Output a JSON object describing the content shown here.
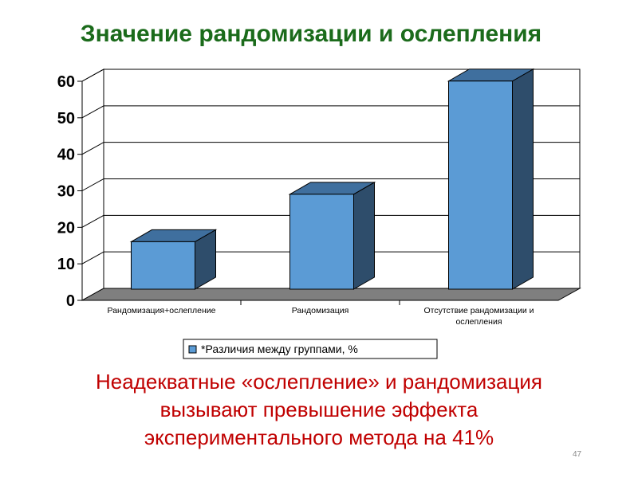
{
  "slide": {
    "title": "Значение рандомизации и ослепления",
    "caption_lines": [
      "Неадекватные «ослепление» и рандомизация",
      "вызывают превышение эффекта",
      "экспериментального метода на 41%"
    ],
    "page_number": "47"
  },
  "chart_data": {
    "type": "bar",
    "title": "",
    "xlabel": "",
    "ylabel": "",
    "categories": [
      [
        "Рандомизация+ослепление"
      ],
      [
        "Рандомизация"
      ],
      [
        "Отсутствие рандомизации и",
        "ослепления"
      ]
    ],
    "series": [
      {
        "name": "*Различия между группами, %",
        "values": [
          13,
          26,
          57
        ]
      }
    ],
    "yticks": [
      "0",
      "10",
      "20",
      "30",
      "40",
      "50",
      "60"
    ],
    "ylim": [
      0,
      60
    ],
    "grid": true,
    "legend_position": "bottom",
    "three_d": true,
    "colors": {
      "bar_front": "#5b9bd5",
      "bar_side": "#2e4d6b",
      "bar_top": "#3f6f9e",
      "floor": "#7f7f7f",
      "title": "#1b6b1b",
      "caption": "#c00000"
    }
  }
}
